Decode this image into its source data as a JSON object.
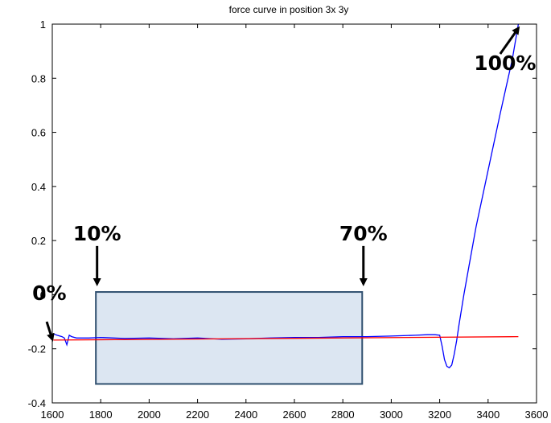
{
  "chart_data": {
    "type": "line",
    "title": "force curve in position 3x 3y",
    "xlabel": "",
    "ylabel": "",
    "xlim": [
      1600,
      3600
    ],
    "ylim": [
      -0.4,
      1.0
    ],
    "x_ticks": [
      1600,
      1800,
      2000,
      2200,
      2400,
      2600,
      2800,
      3000,
      3200,
      3400,
      3600
    ],
    "y_ticks": [
      -0.4,
      -0.2,
      0,
      0.2,
      0.4,
      0.6,
      0.8,
      1
    ],
    "x_tick_labels": [
      "1600",
      "1800",
      "2000",
      "2200",
      "2400",
      "2600",
      "2800",
      "3000",
      "3200",
      "3400",
      "3600"
    ],
    "y_tick_labels": [
      "-0.4",
      "-0.2",
      "0",
      "0.2",
      "0.4",
      "0.6",
      "0.8",
      "1"
    ],
    "grid": false,
    "series": [
      {
        "color": "#0000ff",
        "x": [
          1605,
          1620,
          1640,
          1650,
          1660,
          1670,
          1680,
          1700,
          1750,
          1800,
          1900,
          2000,
          2100,
          2200,
          2300,
          2400,
          2500,
          2600,
          2700,
          2800,
          2900,
          3000,
          3100,
          3150,
          3180,
          3200,
          3210,
          3220,
          3230,
          3240,
          3250,
          3260,
          3270,
          3280,
          3300,
          3320,
          3350,
          3400,
          3450,
          3500,
          3525
        ],
        "y": [
          -0.145,
          -0.15,
          -0.155,
          -0.16,
          -0.185,
          -0.15,
          -0.155,
          -0.16,
          -0.16,
          -0.158,
          -0.162,
          -0.16,
          -0.163,
          -0.16,
          -0.165,
          -0.163,
          -0.16,
          -0.158,
          -0.158,
          -0.155,
          -0.155,
          -0.153,
          -0.15,
          -0.148,
          -0.148,
          -0.15,
          -0.19,
          -0.24,
          -0.265,
          -0.27,
          -0.26,
          -0.22,
          -0.17,
          -0.11,
          0.0,
          0.1,
          0.25,
          0.46,
          0.67,
          0.87,
          1.0
        ]
      },
      {
        "color": "#ff0000",
        "x": [
          1605,
          3525
        ],
        "y": [
          -0.168,
          -0.155
        ]
      }
    ],
    "region": {
      "x": [
        1780,
        2880
      ],
      "y": [
        -0.33,
        0.01
      ],
      "fill": "#dce6f2",
      "stroke": "#2f4f6f"
    },
    "annotations": [
      {
        "text": "0%",
        "label_x": 1588,
        "label_y": -0.02,
        "from": [
          1577,
          -0.1
        ],
        "to": [
          1600,
          -0.165
        ]
      },
      {
        "text": "10%",
        "label_x": 1785,
        "label_y": 0.2,
        "from": [
          1785,
          0.18
        ],
        "to": [
          1785,
          0.04
        ]
      },
      {
        "text": "70%",
        "label_x": 2885,
        "label_y": 0.2,
        "from": [
          2885,
          0.18
        ],
        "to": [
          2885,
          0.04
        ]
      },
      {
        "text": "100%",
        "label_x": 3470,
        "label_y": 0.83,
        "from": [
          3450,
          0.89
        ],
        "to": [
          3525,
          0.985
        ]
      }
    ]
  }
}
